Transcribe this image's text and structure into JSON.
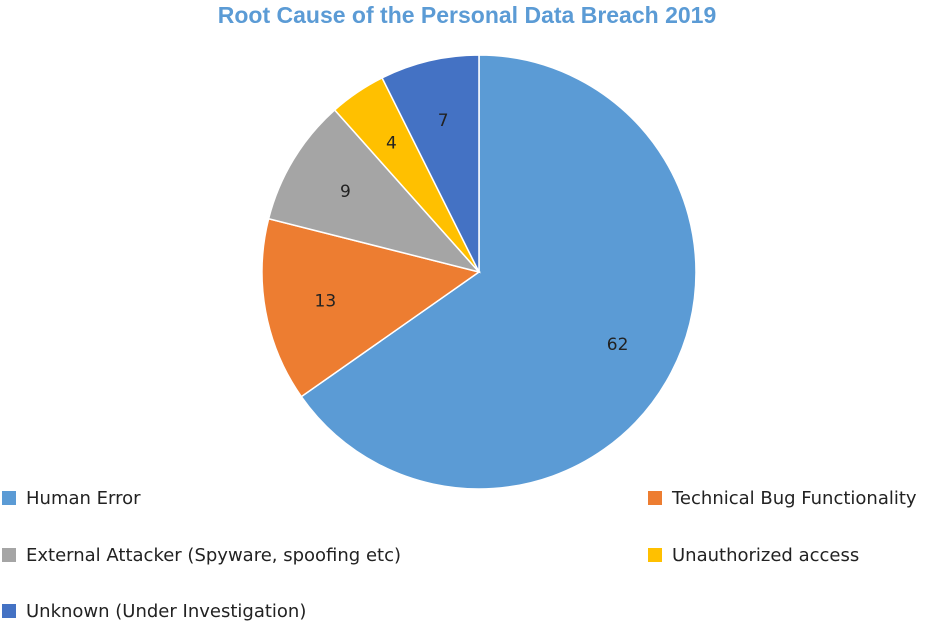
{
  "chart_data": {
    "type": "pie",
    "title": "Root Cause of the Personal Data Breach 2019",
    "categories": [
      "Human Error",
      "Technical Bug Functionality",
      "External Attacker (Spyware, spoofing etc)",
      "Unauthorized access",
      "Unknown (Under Investigation)"
    ],
    "values": [
      62,
      13,
      9,
      4,
      7
    ],
    "data_labels": [
      "62",
      "13",
      "9",
      "4",
      "7"
    ],
    "colors": [
      "#5b9bd5",
      "#ed7d31",
      "#a5a5a5",
      "#ffc000",
      "#4472c4"
    ],
    "legend_position": "bottom"
  }
}
